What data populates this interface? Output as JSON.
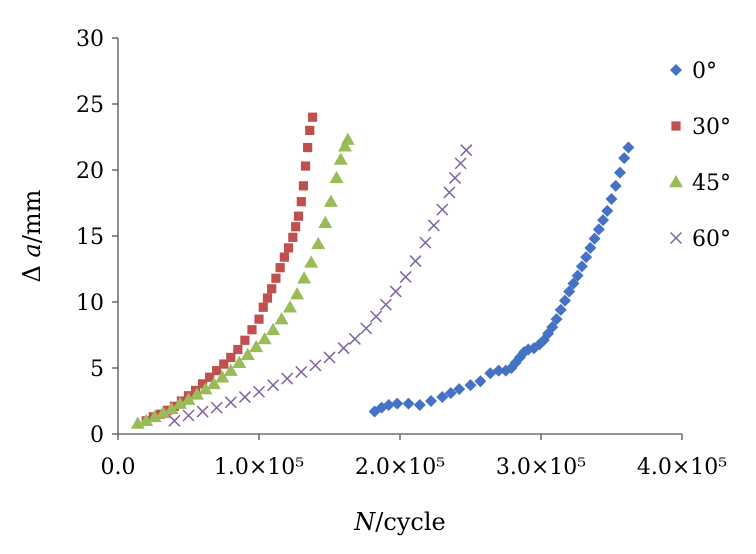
{
  "chart_data": {
    "type": "scatter",
    "title": "",
    "xlabel": "N/cycle",
    "xlabel_italic": "N",
    "xlabel_rest": "/cycle",
    "ylabel": "Δ a/mm",
    "ylabel_symbol": "Δ ",
    "ylabel_italic": "a",
    "ylabel_rest": "/mm",
    "xlim": [
      0,
      400000
    ],
    "ylim": [
      0,
      30
    ],
    "x_ticks": [
      {
        "value": 0,
        "label": "0.0"
      },
      {
        "value": 100000,
        "label": "1.0×10⁵"
      },
      {
        "value": 200000,
        "label": "2.0×10⁵"
      },
      {
        "value": 300000,
        "label": "3.0×10⁵"
      },
      {
        "value": 400000,
        "label": "4.0×10⁵"
      }
    ],
    "y_ticks": [
      {
        "value": 0,
        "label": "0"
      },
      {
        "value": 5,
        "label": "5"
      },
      {
        "value": 10,
        "label": "10"
      },
      {
        "value": 15,
        "label": "15"
      },
      {
        "value": 20,
        "label": "20"
      },
      {
        "value": 25,
        "label": "25"
      },
      {
        "value": 30,
        "label": "30"
      }
    ],
    "grid": false,
    "legend_position": "right",
    "series": [
      {
        "name": "0°",
        "marker": "diamond",
        "color": "#4472C4",
        "points": [
          [
            182000,
            1.7
          ],
          [
            187000,
            2.0
          ],
          [
            192000,
            2.2
          ],
          [
            198000,
            2.3
          ],
          [
            206000,
            2.3
          ],
          [
            214000,
            2.2
          ],
          [
            222000,
            2.5
          ],
          [
            230000,
            2.8
          ],
          [
            236000,
            3.1
          ],
          [
            242000,
            3.4
          ],
          [
            250000,
            3.7
          ],
          [
            257000,
            4.0
          ],
          [
            264000,
            4.6
          ],
          [
            270000,
            4.8
          ],
          [
            275000,
            4.8
          ],
          [
            279000,
            5.0
          ],
          [
            282000,
            5.4
          ],
          [
            285000,
            5.8
          ],
          [
            288000,
            6.2
          ],
          [
            291000,
            6.4
          ],
          [
            295000,
            6.5
          ],
          [
            299000,
            6.8
          ],
          [
            302000,
            7.1
          ],
          [
            305000,
            7.6
          ],
          [
            308000,
            8.1
          ],
          [
            311000,
            8.7
          ],
          [
            314000,
            9.4
          ],
          [
            317000,
            10.1
          ],
          [
            320000,
            10.8
          ],
          [
            323000,
            11.4
          ],
          [
            326000,
            12.0
          ],
          [
            329000,
            12.7
          ],
          [
            332000,
            13.4
          ],
          [
            335000,
            14.1
          ],
          [
            338000,
            14.8
          ],
          [
            341000,
            15.5
          ],
          [
            344000,
            16.2
          ],
          [
            347000,
            16.9
          ],
          [
            350000,
            17.8
          ],
          [
            353000,
            18.8
          ],
          [
            356000,
            19.8
          ],
          [
            359000,
            20.9
          ],
          [
            362000,
            21.7
          ]
        ]
      },
      {
        "name": "30°",
        "marker": "square",
        "color": "#C0504D",
        "points": [
          [
            20000,
            1.0
          ],
          [
            25000,
            1.3
          ],
          [
            30000,
            1.5
          ],
          [
            35000,
            1.8
          ],
          [
            40000,
            2.1
          ],
          [
            45000,
            2.5
          ],
          [
            50000,
            2.9
          ],
          [
            55000,
            3.3
          ],
          [
            60000,
            3.8
          ],
          [
            65000,
            4.3
          ],
          [
            70000,
            4.8
          ],
          [
            75000,
            5.3
          ],
          [
            80000,
            5.8
          ],
          [
            85000,
            6.4
          ],
          [
            90000,
            7.1
          ],
          [
            95000,
            7.9
          ],
          [
            100000,
            8.7
          ],
          [
            103000,
            9.6
          ],
          [
            106000,
            10.3
          ],
          [
            109000,
            11.0
          ],
          [
            112000,
            11.8
          ],
          [
            115000,
            12.6
          ],
          [
            118000,
            13.4
          ],
          [
            121000,
            14.1
          ],
          [
            124000,
            14.9
          ],
          [
            126000,
            15.7
          ],
          [
            128000,
            16.5
          ],
          [
            130000,
            17.6
          ],
          [
            131500,
            18.8
          ],
          [
            133000,
            20.3
          ],
          [
            134500,
            21.7
          ],
          [
            136000,
            23.0
          ],
          [
            138000,
            24.0
          ]
        ]
      },
      {
        "name": "45°",
        "marker": "triangle",
        "color": "#9BBB59",
        "points": [
          [
            14000,
            0.8
          ],
          [
            20000,
            1.0
          ],
          [
            26000,
            1.3
          ],
          [
            32000,
            1.6
          ],
          [
            38000,
            1.9
          ],
          [
            44000,
            2.3
          ],
          [
            50000,
            2.6
          ],
          [
            56000,
            3.0
          ],
          [
            62000,
            3.4
          ],
          [
            68000,
            3.8
          ],
          [
            74000,
            4.3
          ],
          [
            80000,
            4.8
          ],
          [
            86000,
            5.4
          ],
          [
            92000,
            6.0
          ],
          [
            98000,
            6.6
          ],
          [
            104000,
            7.2
          ],
          [
            110000,
            7.9
          ],
          [
            116000,
            8.7
          ],
          [
            122000,
            9.6
          ],
          [
            127000,
            10.6
          ],
          [
            132000,
            11.8
          ],
          [
            137000,
            13.0
          ],
          [
            142000,
            14.4
          ],
          [
            147000,
            16.0
          ],
          [
            151000,
            17.6
          ],
          [
            155000,
            19.4
          ],
          [
            158000,
            20.8
          ],
          [
            161000,
            21.8
          ],
          [
            163000,
            22.3
          ]
        ]
      },
      {
        "name": "60°",
        "marker": "x",
        "color": "#8064A2",
        "points": [
          [
            40000,
            1.0
          ],
          [
            50000,
            1.4
          ],
          [
            60000,
            1.7
          ],
          [
            70000,
            2.0
          ],
          [
            80000,
            2.4
          ],
          [
            90000,
            2.8
          ],
          [
            100000,
            3.2
          ],
          [
            110000,
            3.7
          ],
          [
            120000,
            4.2
          ],
          [
            130000,
            4.7
          ],
          [
            140000,
            5.2
          ],
          [
            150000,
            5.8
          ],
          [
            160000,
            6.5
          ],
          [
            168000,
            7.2
          ],
          [
            176000,
            8.0
          ],
          [
            183000,
            8.9
          ],
          [
            190000,
            9.8
          ],
          [
            197000,
            10.8
          ],
          [
            204000,
            11.9
          ],
          [
            211000,
            13.1
          ],
          [
            218000,
            14.5
          ],
          [
            224000,
            15.8
          ],
          [
            230000,
            17.0
          ],
          [
            235000,
            18.3
          ],
          [
            239000,
            19.4
          ],
          [
            243000,
            20.5
          ],
          [
            247000,
            21.5
          ]
        ]
      }
    ]
  }
}
